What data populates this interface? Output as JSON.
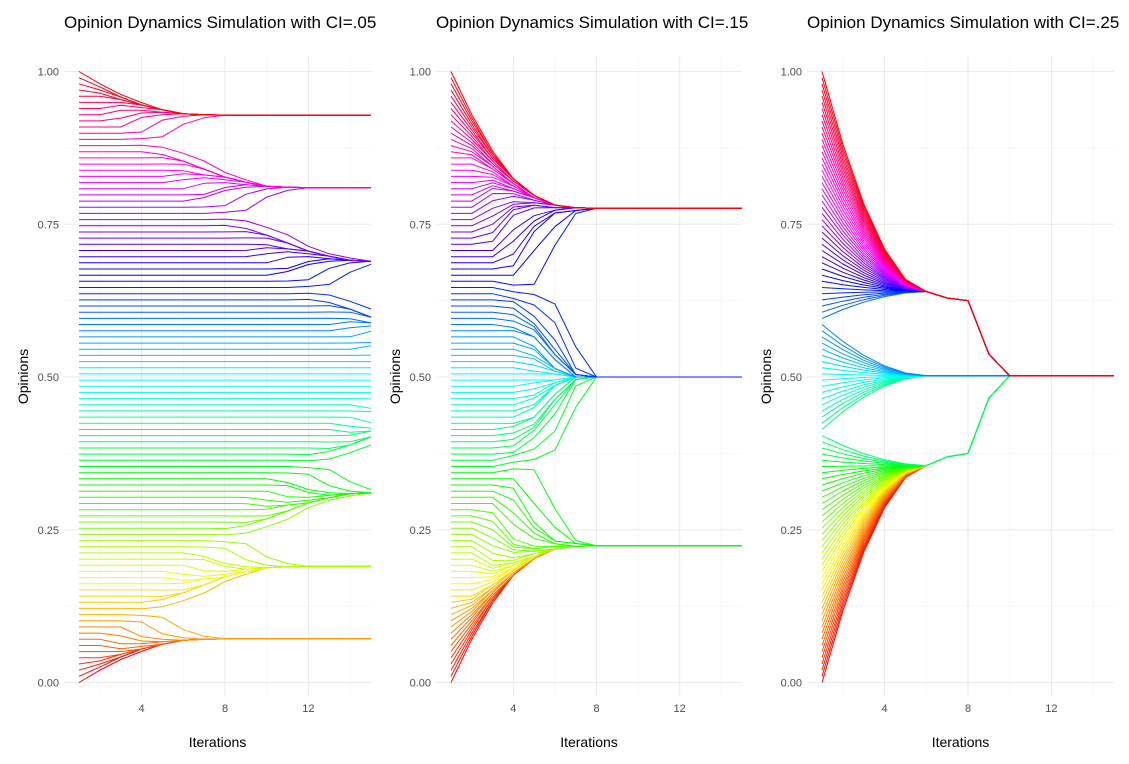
{
  "chart_data": [
    {
      "type": "line",
      "title": "Opinion Dynamics Simulation with CI=.05",
      "xlabel": "Iterations",
      "ylabel": "Opinions",
      "xlim": [
        1,
        15
      ],
      "ylim": [
        0,
        1
      ],
      "x_ticks": [
        "4",
        "8",
        "12"
      ],
      "y_ticks": [
        "0.00",
        "0.25",
        "0.50",
        "0.75",
        "1.00"
      ],
      "agents": 100,
      "initial_opinions": "evenly spaced from 0.00 to 1.00",
      "color_scale": "rainbow by initial opinion (0.00 red, 0.17 yellow, 0.33 green, 0.50 cyan, 0.67 blue, 0.83 magenta, 1.00 red)",
      "series": [
        {
          "start_range": [
            0.0,
            0.11
          ],
          "final": 0.08,
          "converge_at": 6
        },
        {
          "start_range": [
            0.12,
            0.21
          ],
          "final": 0.19,
          "converge_at": 9
        },
        {
          "start_range": [
            0.22,
            0.34
          ],
          "final": 0.29,
          "converge_at": 11
        },
        {
          "start_range": [
            0.35,
            0.36
          ],
          "final": 0.355,
          "converge_at": 12
        },
        {
          "start_range": [
            0.37,
            0.42
          ],
          "final": 0.41,
          "converge_at": 15
        },
        {
          "start_range": [
            0.43,
            0.47
          ],
          "final": 0.455,
          "converge_at": 15
        },
        {
          "start_range": [
            0.48,
            0.52
          ],
          "final": 0.48,
          "converge_at": 15
        },
        {
          "start_range": [
            0.53,
            0.61
          ],
          "final": 0.565,
          "converge_at": 15
        },
        {
          "start_range": [
            0.62,
            0.75
          ],
          "final": 0.69,
          "converge_at": 12
        },
        {
          "start_range": [
            0.76,
            0.87
          ],
          "final": 0.81,
          "converge_at": 10
        },
        {
          "start_range": [
            0.88,
            1.0
          ],
          "final": 0.925,
          "converge_at": 7
        }
      ]
    },
    {
      "type": "line",
      "title": "Opinion Dynamics Simulation with CI=.15",
      "xlabel": "Iterations",
      "ylabel": "Opinions",
      "xlim": [
        1,
        15
      ],
      "ylim": [
        0,
        1
      ],
      "x_ticks": [
        "4",
        "8",
        "12"
      ],
      "y_ticks": [
        "0.00",
        "0.25",
        "0.50",
        "0.75",
        "1.00"
      ],
      "agents": 100,
      "initial_opinions": "evenly spaced from 0.00 to 1.00",
      "color_scale": "rainbow by initial opinion",
      "series": [
        {
          "start_range": [
            0.0,
            0.38
          ],
          "final": 0.225,
          "converge_at": 8
        },
        {
          "start_range": [
            0.39,
            0.63
          ],
          "final": 0.5,
          "converge_at": 8
        },
        {
          "start_range": [
            0.64,
            1.0
          ],
          "final": 0.77,
          "converge_at": 8
        }
      ]
    },
    {
      "type": "line",
      "title": "Opinion Dynamics Simulation with CI=.25",
      "xlabel": "Iterations",
      "ylabel": "Opinions",
      "xlim": [
        1,
        15
      ],
      "ylim": [
        0,
        1
      ],
      "x_ticks": [
        "4",
        "8",
        "12"
      ],
      "y_ticks": [
        "0.00",
        "0.25",
        "0.50",
        "0.75",
        "1.00"
      ],
      "agents": 100,
      "initial_opinions": "evenly spaced from 0.00 to 1.00",
      "color_scale": "rainbow by initial opinion",
      "series": [
        {
          "start_range": [
            0.0,
            1.0
          ],
          "final": 0.502,
          "converge_at": 10,
          "intermediate_clusters": [
            {
              "iteration": 6,
              "values": [
                0.355,
                0.64
              ]
            },
            {
              "iteration": 8,
              "values": [
                0.375,
                0.625
              ]
            }
          ]
        }
      ]
    }
  ]
}
